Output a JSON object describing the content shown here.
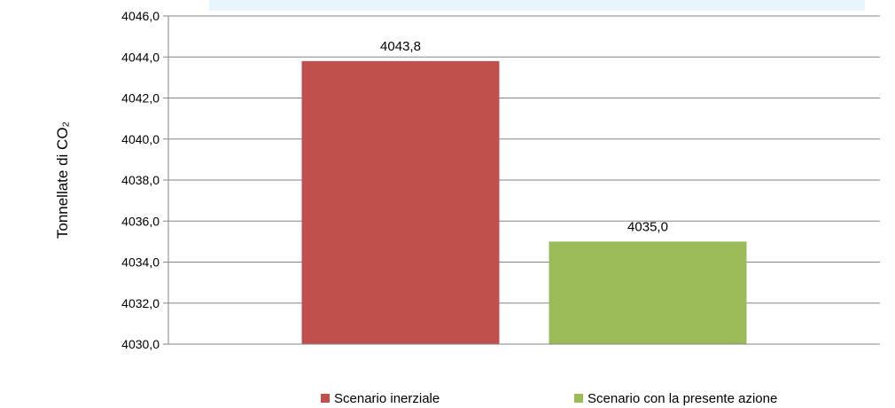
{
  "chart_data": {
    "type": "bar",
    "ylabel": "Tonnellate di CO₂",
    "ylim": [
      4030.0,
      4046.0
    ],
    "ytick_step": 2.0,
    "decimal_separator": ",",
    "grid": true,
    "legend_position": "bottom",
    "series": [
      {
        "name": "Scenario inerziale",
        "value": 4043.8,
        "label": "4043,8",
        "color": "#c0504d"
      },
      {
        "name": "Scenario con la presente azione",
        "value": 4035.0,
        "label": "4035,0",
        "color": "#9bbb59"
      }
    ],
    "header_band_color": "#e8f5fb"
  }
}
